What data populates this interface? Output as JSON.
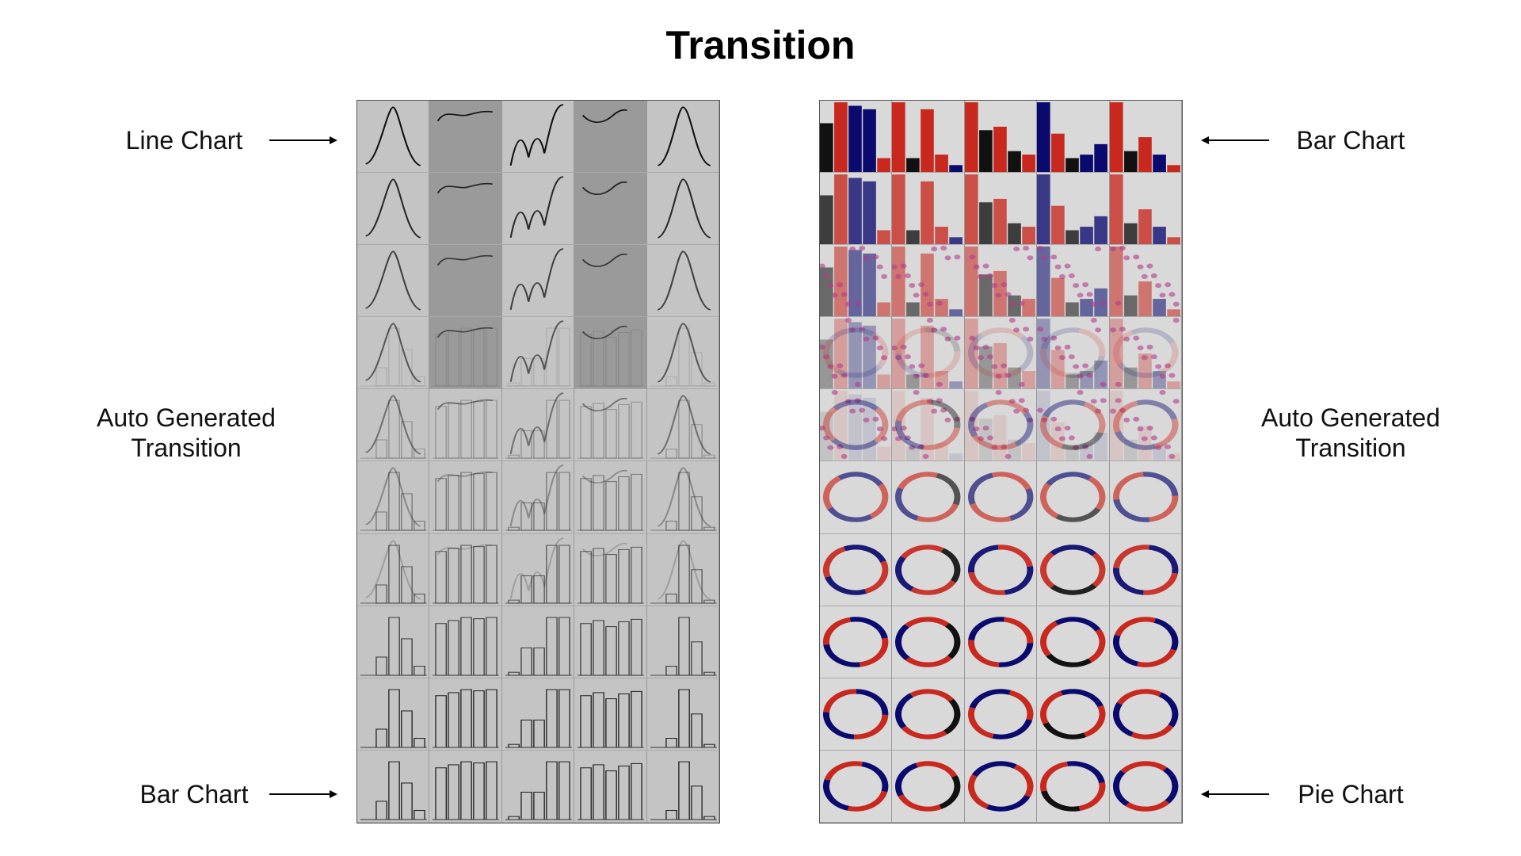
{
  "title": "Transition",
  "left_panel": {
    "top_label": "Line Chart",
    "middle_label_line1": "Auto Generated",
    "middle_label_line2": "Transition",
    "bottom_label": "Bar Chart"
  },
  "right_panel": {
    "top_label": "Bar Chart",
    "middle_label_line1": "Auto Generated",
    "middle_label_line2": "Transition",
    "bottom_label": "Pie Chart"
  },
  "colors": {
    "red": "#c8281e",
    "navy": "#0a0a6e",
    "black": "#111111",
    "magenta": "#b03a8a",
    "gray_light": "#d9d9d9",
    "gray_dark": "#8f8f8f"
  },
  "grid": {
    "rows": 10,
    "columns": 5
  }
}
